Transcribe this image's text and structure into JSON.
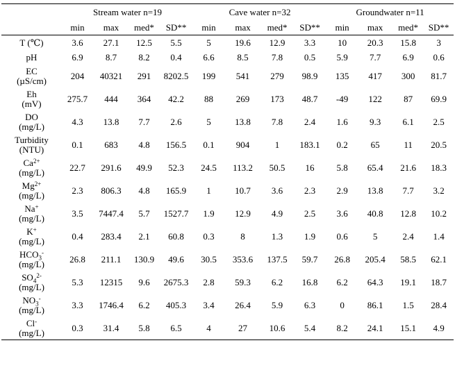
{
  "groups": [
    {
      "label": "Stream water n=19"
    },
    {
      "label": "Cave water n=32"
    },
    {
      "label": "Groundwater n=11"
    }
  ],
  "stat_headers": [
    "min",
    "max",
    "med*",
    "SD**"
  ],
  "rows": [
    {
      "name": "T (℃)",
      "unit": "",
      "values": [
        "3.6",
        "27.1",
        "12.5",
        "5.5",
        "5",
        "19.6",
        "12.9",
        "3.3",
        "10",
        "20.3",
        "15.8",
        "3"
      ]
    },
    {
      "name": "pH",
      "unit": "",
      "values": [
        "6.9",
        "8.7",
        "8.2",
        "0.4",
        "6.6",
        "8.5",
        "7.8",
        "0.5",
        "5.9",
        "7.7",
        "6.9",
        "0.6"
      ]
    },
    {
      "name": "EC",
      "unit": "(µS/cm)",
      "values": [
        "204",
        "40321",
        "291",
        "8202.5",
        "199",
        "541",
        "279",
        "98.9",
        "135",
        "417",
        "300",
        "81.7"
      ]
    },
    {
      "name": "Eh",
      "unit": "(mV)",
      "values": [
        "275.7",
        "444",
        "364",
        "42.2",
        "88",
        "269",
        "173",
        "48.7",
        "-49",
        "122",
        "87",
        "69.9"
      ]
    },
    {
      "name": "DO",
      "unit": "(mg/L)",
      "values": [
        "4.3",
        "13.8",
        "7.7",
        "2.6",
        "5",
        "13.8",
        "7.8",
        "2.4",
        "1.6",
        "9.3",
        "6.1",
        "2.5"
      ]
    },
    {
      "name": "Turbidity",
      "unit": "(NTU)",
      "values": [
        "0.1",
        "683",
        "4.8",
        "156.5",
        "0.1",
        "904",
        "1",
        "183.1",
        "0.2",
        "65",
        "11",
        "20.5"
      ]
    },
    {
      "name": "Ca",
      "sup": "2+",
      "unit": "(mg/L)",
      "values": [
        "22.7",
        "291.6",
        "49.9",
        "52.3",
        "24.5",
        "113.2",
        "50.5",
        "16",
        "5.8",
        "65.4",
        "21.6",
        "18.3"
      ]
    },
    {
      "name": "Mg",
      "sup": "2+",
      "unit": "(mg/L)",
      "values": [
        "2.3",
        "806.3",
        "4.8",
        "165.9",
        "1",
        "10.7",
        "3.6",
        "2.3",
        "2.9",
        "13.8",
        "7.7",
        "3.2"
      ]
    },
    {
      "name": "Na",
      "sup": "+",
      "unit": "(mg/L)",
      "values": [
        "3.5",
        "7447.4",
        "5.7",
        "1527.7",
        "1.9",
        "12.9",
        "4.9",
        "2.5",
        "3.6",
        "40.8",
        "12.8",
        "10.2"
      ]
    },
    {
      "name": "K",
      "sup": "+",
      "unit": "(mg/L)",
      "values": [
        "0.4",
        "283.4",
        "2.1",
        "60.8",
        "0.3",
        "8",
        "1.3",
        "1.9",
        "0.6",
        "5",
        "2.4",
        "1.4"
      ]
    },
    {
      "name": "HCO",
      "sub": "3",
      "sup": "-",
      "unit": "(mg/L)",
      "values": [
        "26.8",
        "211.1",
        "130.9",
        "49.6",
        "30.5",
        "353.6",
        "137.5",
        "59.7",
        "26.8",
        "205.4",
        "58.5",
        "62.1"
      ]
    },
    {
      "name": "SO",
      "sub": "4",
      "sup": "2-",
      "unit": "(mg/L)",
      "values": [
        "5.3",
        "12315",
        "9.6",
        "2675.3",
        "2.8",
        "59.3",
        "6.2",
        "16.8",
        "6.2",
        "64.3",
        "19.1",
        "18.7"
      ]
    },
    {
      "name": "NO",
      "sub": "3",
      "sup": "-",
      "unit": "(mg/L)",
      "values": [
        "3.3",
        "1746.4",
        "6.2",
        "405.3",
        "3.4",
        "26.4",
        "5.9",
        "6.3",
        "0",
        "86.1",
        "1.5",
        "28.4"
      ]
    },
    {
      "name": "Cl",
      "sup": "-",
      "unit": "(mg/L)",
      "values": [
        "0.3",
        "31.4",
        "5.8",
        "6.5",
        "4",
        "27",
        "10.6",
        "5.4",
        "8.2",
        "24.1",
        "15.1",
        "4.9"
      ]
    }
  ]
}
